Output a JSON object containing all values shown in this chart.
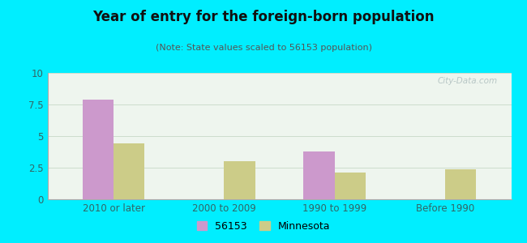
{
  "title": "Year of entry for the foreign-born population",
  "subtitle": "(Note: State values scaled to 56153 population)",
  "categories": [
    "2010 or later",
    "2000 to 2009",
    "1990 to 1999",
    "Before 1990"
  ],
  "series_56153": [
    7.9,
    0,
    3.8,
    0
  ],
  "series_minnesota": [
    4.4,
    3.0,
    2.1,
    2.4
  ],
  "color_56153": "#cc99cc",
  "color_minnesota": "#cccc88",
  "ylim": [
    0,
    10
  ],
  "yticks": [
    0,
    2.5,
    5,
    7.5,
    10
  ],
  "ytick_labels": [
    "0",
    "2.5",
    "5",
    "7.5",
    "10"
  ],
  "bar_width": 0.28,
  "background_outer": "#00eeff",
  "background_inner": "#eef5ee",
  "legend_label_56153": "56153",
  "legend_label_minnesota": "Minnesota",
  "watermark": "City-Data.com"
}
